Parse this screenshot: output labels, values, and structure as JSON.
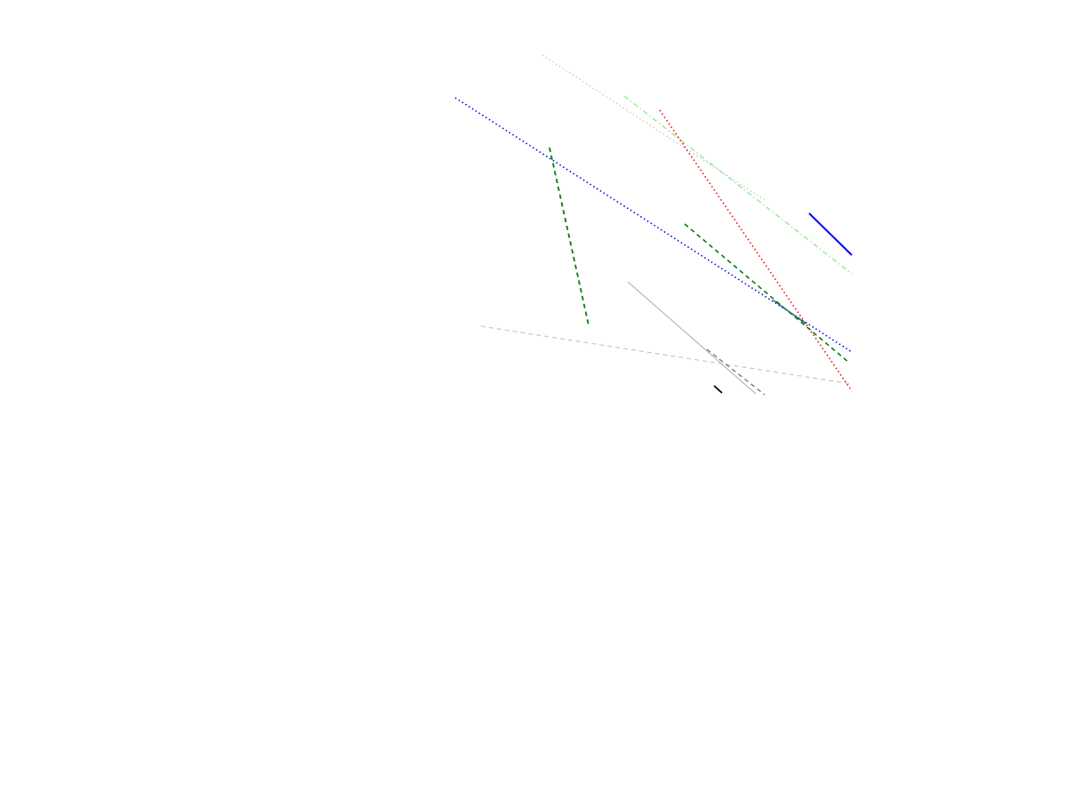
{
  "colors": {
    "background": "#ffffff"
  },
  "strokes": [
    {
      "name": "silver-dotted-line",
      "color": "#c0c0c0",
      "style": "dotted"
    },
    {
      "name": "lightgreen-dashdot-line",
      "color": "#90ee90",
      "style": "dashdot"
    },
    {
      "name": "red-dotted-line",
      "color": "#ff0000",
      "style": "dotted"
    },
    {
      "name": "blue-dotted-line",
      "color": "#0000ff",
      "style": "dotted"
    },
    {
      "name": "green-dashed-short-line",
      "color": "#008000",
      "style": "dashed"
    },
    {
      "name": "green-dashed-long-line",
      "color": "#008000",
      "style": "dashed"
    },
    {
      "name": "blue-solid-line",
      "color": "#0000ff",
      "style": "solid"
    },
    {
      "name": "gray-dashed-line",
      "color": "#c8c8c8",
      "style": "dashed"
    },
    {
      "name": "gray-thin-line",
      "color": "#aaaaaa",
      "style": "solid"
    },
    {
      "name": "darkgray-dashed-line",
      "color": "#666666",
      "style": "dashed"
    },
    {
      "name": "black-short-line",
      "color": "#000000",
      "style": "solid"
    },
    {
      "name": "teal-short-line",
      "color": "#2f6f6f",
      "style": "solid"
    }
  ]
}
